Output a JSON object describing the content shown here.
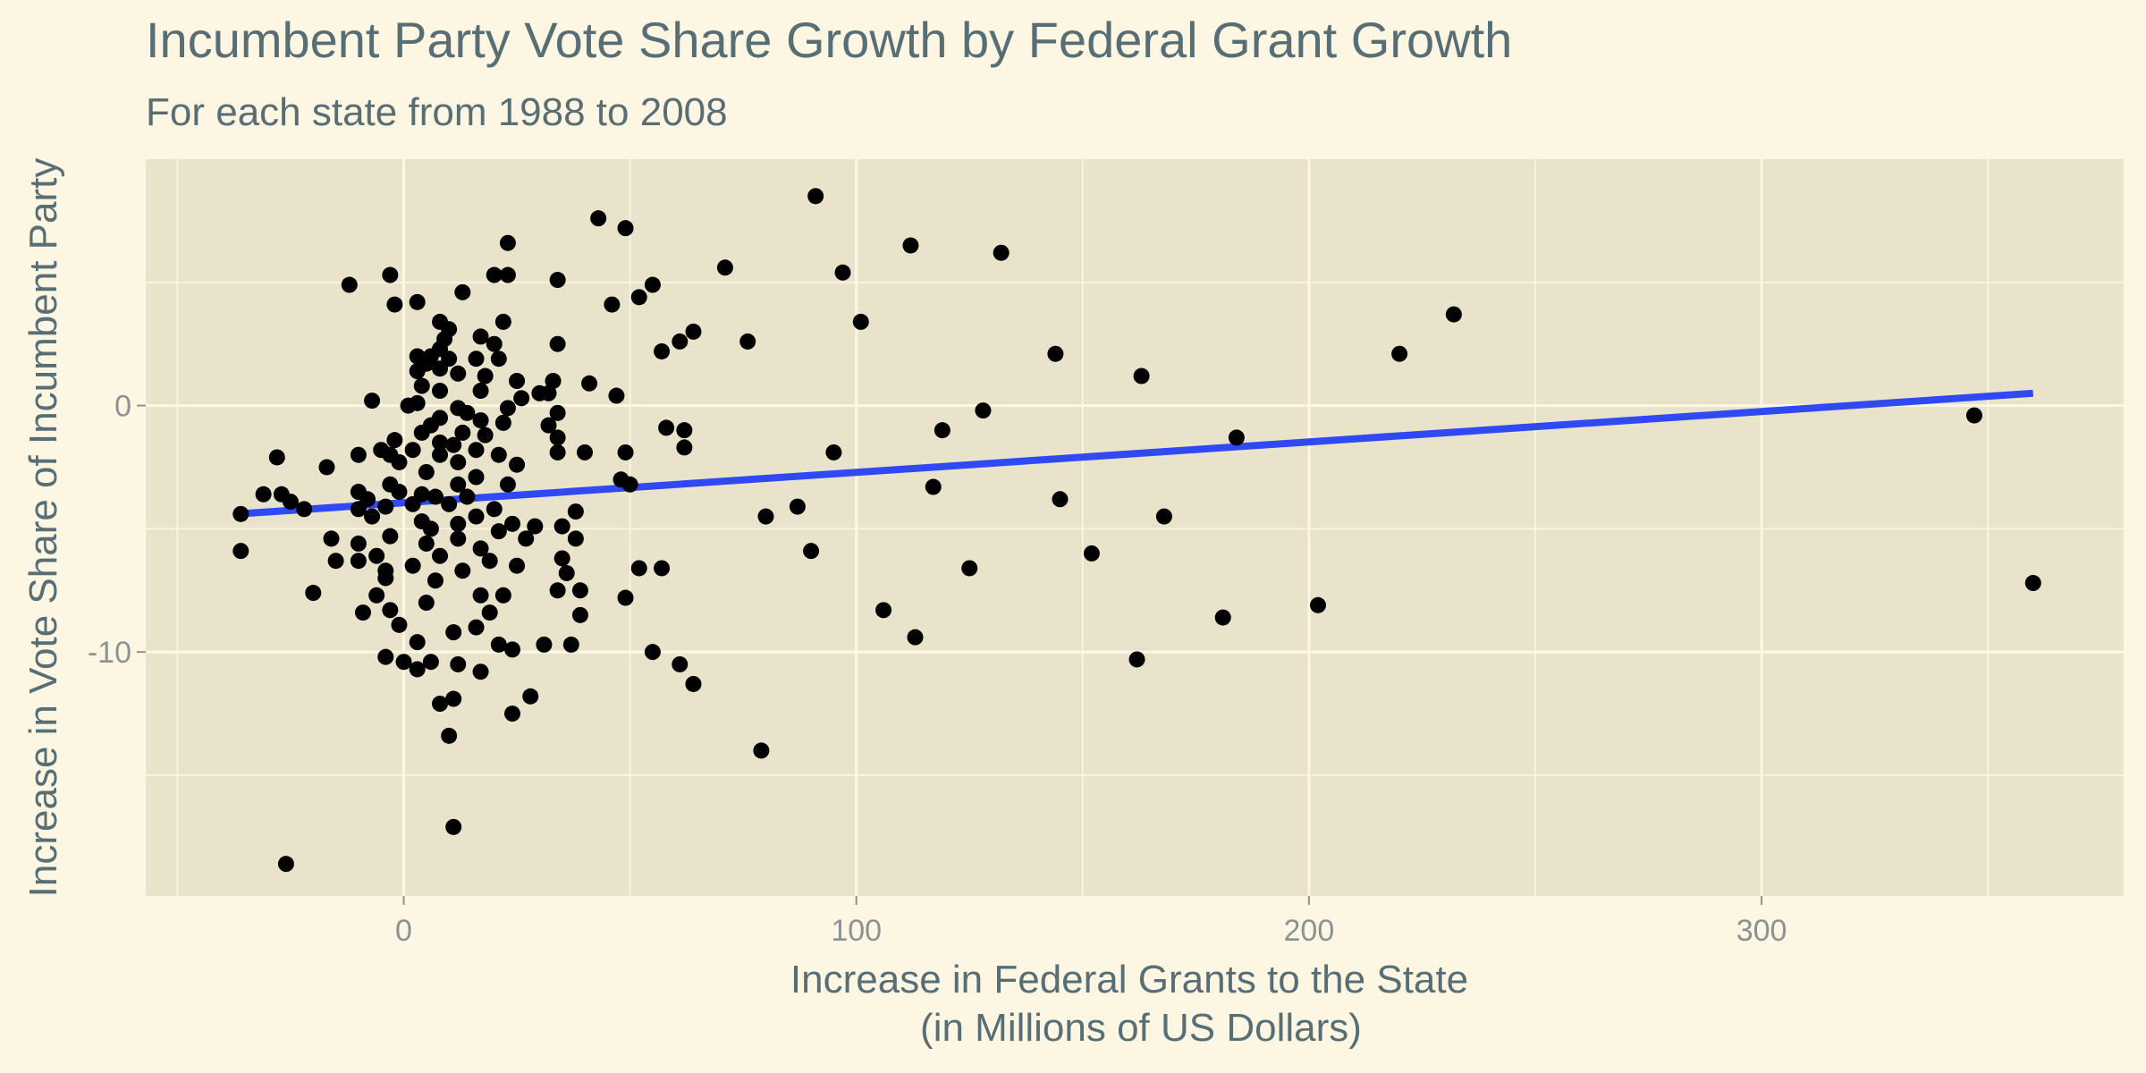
{
  "chart_data": {
    "type": "scatter",
    "title": "Incumbent Party Vote Share Growth by Federal Grant Growth",
    "subtitle": "For each state from 1988 to 2008",
    "xlabel_line1": "Increase in Federal Grants to the State",
    "xlabel_line2": "(in Millions of US Dollars)",
    "ylabel": "Increase in Vote Share of Incumbent Party",
    "xlim": [
      -57,
      380
    ],
    "ylim": [
      -19.9,
      10
    ],
    "x_ticks": [
      0,
      100,
      200,
      300
    ],
    "x_tick_labels": [
      "0",
      "100",
      "200",
      "300"
    ],
    "y_ticks": [
      0,
      -10
    ],
    "y_tick_labels": [
      "0",
      "-10"
    ],
    "x_minor_ticks": [
      -50,
      50,
      150,
      250,
      350
    ],
    "y_minor_ticks": [
      5,
      -5,
      -15
    ],
    "grid": true,
    "colors": {
      "background": "#fdf6e3",
      "panel": "#eae3cb",
      "grid": "#fdf6e3",
      "points": "#000000",
      "trend_line": "#2f49f5",
      "title": "#586e75",
      "tick_labels": "#8c9294"
    },
    "trend_line": {
      "x": [
        -37,
        360
      ],
      "y": [
        -4.4,
        0.5
      ]
    },
    "points": [
      [
        91,
        8.5
      ],
      [
        43,
        7.6
      ],
      [
        49,
        7.2
      ],
      [
        112,
        6.5
      ],
      [
        132,
        6.2
      ],
      [
        23,
        6.6
      ],
      [
        71,
        5.6
      ],
      [
        97,
        5.4
      ],
      [
        -3,
        5.3
      ],
      [
        20,
        5.3
      ],
      [
        23,
        5.3
      ],
      [
        34,
        5.1
      ],
      [
        -12,
        4.9
      ],
      [
        55,
        4.9
      ],
      [
        13,
        4.6
      ],
      [
        52,
        4.4
      ],
      [
        -2,
        4.1
      ],
      [
        3,
        4.2
      ],
      [
        46,
        4.1
      ],
      [
        232,
        3.7
      ],
      [
        101,
        3.4
      ],
      [
        8,
        3.4
      ],
      [
        22,
        3.4
      ],
      [
        10,
        3.1
      ],
      [
        64,
        3.0
      ],
      [
        17,
        2.8
      ],
      [
        9,
        2.7
      ],
      [
        61,
        2.6
      ],
      [
        76,
        2.6
      ],
      [
        34,
        2.5
      ],
      [
        20,
        2.5
      ],
      [
        8,
        2.3
      ],
      [
        57,
        2.2
      ],
      [
        144,
        2.1
      ],
      [
        220,
        2.1
      ],
      [
        3,
        2.0
      ],
      [
        6,
        2.0
      ],
      [
        10,
        1.9
      ],
      [
        16,
        1.9
      ],
      [
        21,
        1.9
      ],
      [
        5,
        1.7
      ],
      [
        8,
        1.5
      ],
      [
        3,
        1.4
      ],
      [
        12,
        1.3
      ],
      [
        18,
        1.2
      ],
      [
        163,
        1.2
      ],
      [
        25,
        1.0
      ],
      [
        33,
        1.0
      ],
      [
        41,
        0.9
      ],
      [
        4,
        0.8
      ],
      [
        8,
        0.6
      ],
      [
        17,
        0.6
      ],
      [
        30,
        0.5
      ],
      [
        32,
        0.5
      ],
      [
        47,
        0.4
      ],
      [
        26,
        0.3
      ],
      [
        -7,
        0.2
      ],
      [
        3,
        0.1
      ],
      [
        1,
        0.0
      ],
      [
        12,
        -0.1
      ],
      [
        23,
        -0.1
      ],
      [
        128,
        -0.2
      ],
      [
        14,
        -0.3
      ],
      [
        34,
        -0.3
      ],
      [
        347,
        -0.4
      ],
      [
        8,
        -0.5
      ],
      [
        17,
        -0.6
      ],
      [
        22,
        -0.7
      ],
      [
        6,
        -0.8
      ],
      [
        32,
        -0.8
      ],
      [
        58,
        -0.9
      ],
      [
        62,
        -1.0
      ],
      [
        119,
        -1.0
      ],
      [
        4,
        -1.1
      ],
      [
        13,
        -1.1
      ],
      [
        18,
        -1.2
      ],
      [
        34,
        -1.3
      ],
      [
        184,
        -1.3
      ],
      [
        -2,
        -1.4
      ],
      [
        8,
        -1.5
      ],
      [
        11,
        -1.6
      ],
      [
        62,
        -1.7
      ],
      [
        -5,
        -1.8
      ],
      [
        2,
        -1.8
      ],
      [
        16,
        -1.8
      ],
      [
        34,
        -1.9
      ],
      [
        40,
        -1.9
      ],
      [
        49,
        -1.9
      ],
      [
        95,
        -1.9
      ],
      [
        -10,
        -2.0
      ],
      [
        -3,
        -2.0
      ],
      [
        8,
        -2.0
      ],
      [
        21,
        -2.0
      ],
      [
        -28,
        -2.1
      ],
      [
        -1,
        -2.3
      ],
      [
        12,
        -2.3
      ],
      [
        25,
        -2.4
      ],
      [
        -17,
        -2.5
      ],
      [
        5,
        -2.7
      ],
      [
        16,
        -2.9
      ],
      [
        48,
        -3.0
      ],
      [
        -3,
        -3.2
      ],
      [
        12,
        -3.2
      ],
      [
        23,
        -3.2
      ],
      [
        50,
        -3.2
      ],
      [
        117,
        -3.3
      ],
      [
        -10,
        -3.5
      ],
      [
        -1,
        -3.5
      ],
      [
        4,
        -3.6
      ],
      [
        -31,
        -3.6
      ],
      [
        -27,
        -3.6
      ],
      [
        7,
        -3.7
      ],
      [
        14,
        -3.7
      ],
      [
        -8,
        -3.8
      ],
      [
        145,
        -3.8
      ],
      [
        -25,
        -3.9
      ],
      [
        2,
        -4.0
      ],
      [
        10,
        -4.0
      ],
      [
        -4,
        -4.1
      ],
      [
        -22,
        -4.2
      ],
      [
        -10,
        -4.2
      ],
      [
        20,
        -4.2
      ],
      [
        38,
        -4.3
      ],
      [
        -36,
        -4.4
      ],
      [
        87,
        -4.1
      ],
      [
        -7,
        -4.5
      ],
      [
        16,
        -4.5
      ],
      [
        80,
        -4.5
      ],
      [
        168,
        -4.5
      ],
      [
        4,
        -4.7
      ],
      [
        12,
        -4.8
      ],
      [
        24,
        -4.8
      ],
      [
        29,
        -4.9
      ],
      [
        35,
        -4.9
      ],
      [
        6,
        -5.0
      ],
      [
        21,
        -5.1
      ],
      [
        -3,
        -5.3
      ],
      [
        -16,
        -5.4
      ],
      [
        12,
        -5.4
      ],
      [
        27,
        -5.4
      ],
      [
        38,
        -5.4
      ],
      [
        5,
        -5.6
      ],
      [
        -10,
        -5.6
      ],
      [
        17,
        -5.8
      ],
      [
        -36,
        -5.9
      ],
      [
        90,
        -5.9
      ],
      [
        152,
        -6.0
      ],
      [
        -6,
        -6.1
      ],
      [
        8,
        -6.1
      ],
      [
        35,
        -6.2
      ],
      [
        -15,
        -6.3
      ],
      [
        -10,
        -6.3
      ],
      [
        19,
        -6.3
      ],
      [
        2,
        -6.5
      ],
      [
        25,
        -6.5
      ],
      [
        52,
        -6.6
      ],
      [
        57,
        -6.6
      ],
      [
        125,
        -6.6
      ],
      [
        -4,
        -6.7
      ],
      [
        13,
        -6.7
      ],
      [
        36,
        -6.8
      ],
      [
        -4,
        -7.0
      ],
      [
        7,
        -7.1
      ],
      [
        360,
        -7.2
      ],
      [
        -20,
        -7.6
      ],
      [
        -6,
        -7.7
      ],
      [
        17,
        -7.7
      ],
      [
        22,
        -7.7
      ],
      [
        34,
        -7.5
      ],
      [
        39,
        -7.5
      ],
      [
        49,
        -7.8
      ],
      [
        5,
        -8.0
      ],
      [
        202,
        -8.1
      ],
      [
        -3,
        -8.3
      ],
      [
        106,
        -8.3
      ],
      [
        -9,
        -8.4
      ],
      [
        19,
        -8.4
      ],
      [
        39,
        -8.5
      ],
      [
        181,
        -8.6
      ],
      [
        -1,
        -8.9
      ],
      [
        16,
        -9.0
      ],
      [
        11,
        -9.2
      ],
      [
        113,
        -9.4
      ],
      [
        3,
        -9.6
      ],
      [
        21,
        -9.7
      ],
      [
        31,
        -9.7
      ],
      [
        37,
        -9.7
      ],
      [
        24,
        -9.9
      ],
      [
        55,
        -10.0
      ],
      [
        -4,
        -10.2
      ],
      [
        0,
        -10.4
      ],
      [
        6,
        -10.4
      ],
      [
        162,
        -10.3
      ],
      [
        12,
        -10.5
      ],
      [
        61,
        -10.5
      ],
      [
        3,
        -10.7
      ],
      [
        17,
        -10.8
      ],
      [
        64,
        -11.3
      ],
      [
        28,
        -11.8
      ],
      [
        11,
        -11.9
      ],
      [
        8,
        -12.1
      ],
      [
        24,
        -12.5
      ],
      [
        10,
        -13.4
      ],
      [
        79,
        -14.0
      ],
      [
        11,
        -17.1
      ],
      [
        -26,
        -18.6
      ]
    ]
  }
}
